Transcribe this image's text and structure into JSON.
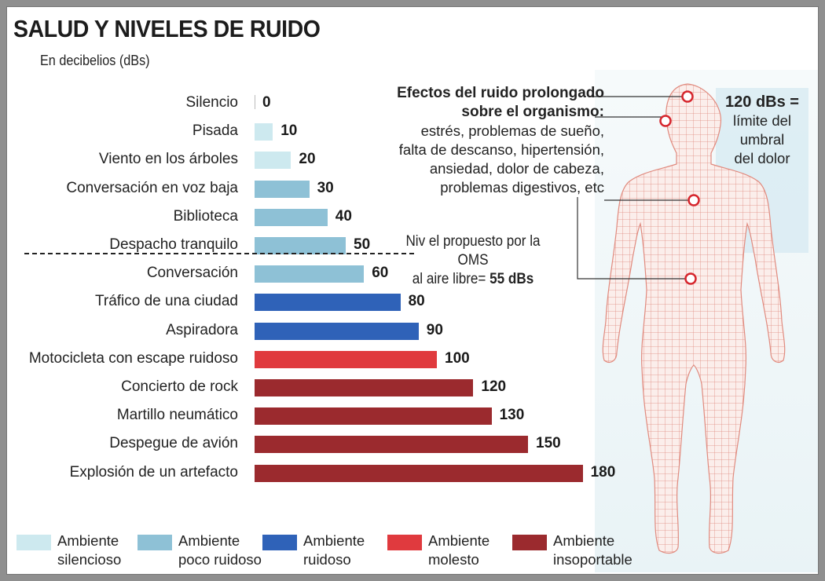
{
  "header": {
    "title": "SALUD Y NIVELES DE RUIDO",
    "subtitle": "En decibelios (dBs)"
  },
  "chart_data": {
    "type": "bar",
    "orientation": "horizontal",
    "title": "SALUD Y NIVELES DE RUIDO",
    "subtitle": "En decibelios (dBs)",
    "categories": [
      "Silencio",
      "Pisada",
      "Viento en los árboles",
      "Conversación en voz baja",
      "Biblioteca",
      "Despacho tranquilo",
      "Conversación",
      "Tráfico de una ciudad",
      "Aspiradora",
      "Motocicleta con escape ruidoso",
      "Concierto de rock",
      "Martillo neumático",
      "Despegue de avión",
      "Explosión de un artefacto"
    ],
    "values": [
      0,
      10,
      20,
      30,
      40,
      50,
      60,
      80,
      90,
      100,
      120,
      130,
      150,
      180
    ],
    "value_labels": [
      "0",
      "10",
      "20",
      "30",
      "40",
      "50",
      "60",
      "80",
      "90",
      "100",
      "120",
      "130",
      "150",
      "180"
    ],
    "bar_groups": [
      0,
      0,
      0,
      1,
      1,
      1,
      1,
      2,
      2,
      3,
      4,
      4,
      4,
      4
    ],
    "xlim": [
      0,
      180
    ],
    "grid": false,
    "legend_position": "bottom",
    "legend": [
      {
        "label_line1": "Ambiente",
        "label_line2": "silencioso",
        "color": "#cde9ef"
      },
      {
        "label_line1": "Ambiente",
        "label_line2": "poco ruidoso",
        "color": "#8ec1d6"
      },
      {
        "label_line1": "Ambiente",
        "label_line2": "ruidoso",
        "color": "#2f62b8"
      },
      {
        "label_line1": "Ambiente",
        "label_line2": "molesto",
        "color": "#e03a3e"
      },
      {
        "label_line1": "Ambiente",
        "label_line2": "insoportable",
        "color": "#9b2a2e"
      }
    ],
    "reference_line": {
      "after_category": "Despacho tranquilo",
      "line1": "Niv el propuesto por la OMS",
      "line2": "al aire libre=",
      "value_label": "55 dBs"
    }
  },
  "effects": {
    "head_line1": "Efectos del ruido prolongado",
    "head_line2": "sobre el  organismo:",
    "lines": [
      "estrés, problemas de sueño,",
      "falta de descanso, hipertensión,",
      "ansiedad, dolor de cabeza,",
      "problemas digestivos, etc"
    ]
  },
  "pain_threshold": {
    "head": "120 dBs =",
    "lines": [
      "límite del",
      "umbral",
      "del dolor"
    ]
  },
  "colors": {
    "marker": "#d6262d",
    "body_mesh": "#e08a7e"
  }
}
